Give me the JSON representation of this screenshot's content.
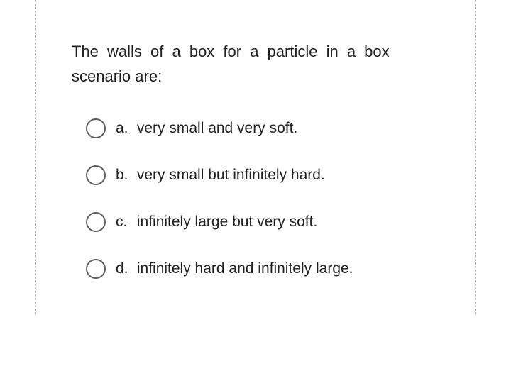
{
  "question": {
    "line1": "The walls of a box for a particle in a box",
    "line2": "scenario are:"
  },
  "options": [
    {
      "letter": "a.",
      "text": "very small and very soft."
    },
    {
      "letter": "b.",
      "text": "very small but infinitely hard."
    },
    {
      "letter": "c.",
      "text": "infinitely large but very soft."
    },
    {
      "letter": "d.",
      "text": "infinitely hard and infinitely large."
    }
  ],
  "colors": {
    "border": "#bbbbbb",
    "text": "#212121",
    "radio_border": "#5e5e5e",
    "background": "#ffffff"
  }
}
